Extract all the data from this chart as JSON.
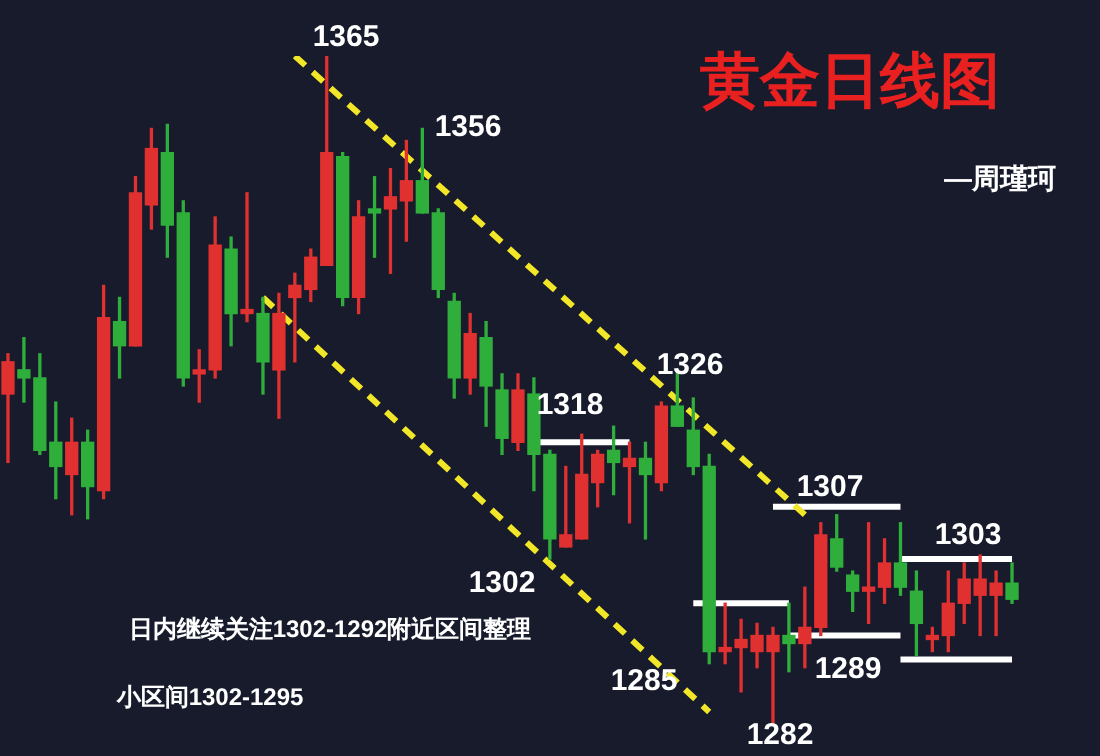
{
  "chart_data": {
    "type": "candlestick",
    "title": "黄金日线图",
    "subtitle": "—周瑾珂",
    "categories": [
      null,
      null,
      null,
      null,
      null,
      null,
      null,
      null,
      null,
      null,
      null,
      null,
      null,
      null,
      null,
      null,
      null,
      null,
      null,
      null,
      null,
      null,
      null,
      null,
      null,
      null,
      null,
      null,
      null,
      null,
      null,
      null,
      null,
      null,
      null,
      null,
      null,
      null,
      null,
      null,
      null,
      null,
      null,
      null,
      null,
      null,
      null,
      null,
      null,
      null,
      null,
      null,
      null,
      null,
      null,
      null,
      null,
      null,
      null,
      null,
      null,
      null,
      null,
      null
    ],
    "ohlc": [
      [
        1323,
        1328,
        1314.5,
        1327
      ],
      [
        1326,
        1330,
        1322,
        1325
      ],
      [
        1325,
        1328,
        1315.5,
        1316
      ],
      [
        1317,
        1322,
        1310,
        1314
      ],
      [
        1313,
        1320,
        1308,
        1317
      ],
      [
        1317,
        1318.5,
        1307.5,
        1311.5
      ],
      [
        1311,
        1336.5,
        1310,
        1332.5
      ],
      [
        1332,
        1335,
        1325,
        1329
      ],
      [
        1329,
        1350,
        1329,
        1348
      ],
      [
        1346.5,
        1356,
        1343.5,
        1353.5
      ],
      [
        1353,
        1356.5,
        1340,
        1344
      ],
      [
        1345.5,
        1347,
        1324,
        1325
      ],
      [
        1325.5,
        1328.5,
        1322,
        1326
      ],
      [
        1326,
        1345,
        1325,
        1341.5
      ],
      [
        1341,
        1342.5,
        1329,
        1333
      ],
      [
        1333,
        1348,
        1332,
        1333.5
      ],
      [
        1333,
        1335,
        1323,
        1327
      ],
      [
        1326,
        1335.5,
        1320,
        1333
      ],
      [
        1335,
        1338,
        1327,
        1336.5
      ],
      [
        1336,
        1341,
        1334.5,
        1340
      ],
      [
        1339,
        1365,
        1339,
        1353
      ],
      [
        1352.5,
        1353,
        1334,
        1335
      ],
      [
        1335,
        1347,
        1333,
        1345
      ],
      [
        1346,
        1350,
        1340,
        1345.5
      ],
      [
        1346,
        1351,
        1338,
        1347.5
      ],
      [
        1347,
        1354.5,
        1342,
        1349.5
      ],
      [
        1349.5,
        1356,
        1345.5,
        1345.5
      ],
      [
        1345.5,
        1346,
        1335,
        1336
      ],
      [
        1334.5,
        1335.5,
        1322.5,
        1325
      ],
      [
        1325,
        1333,
        1323,
        1330.5
      ],
      [
        1330,
        1332,
        1319,
        1324
      ],
      [
        1323.5,
        1325.5,
        1315.5,
        1317.5
      ],
      [
        1317,
        1325.5,
        1316,
        1323.5
      ],
      [
        1323,
        1325,
        1311,
        1315.5
      ],
      [
        1315.5,
        1316,
        1302.5,
        1305
      ],
      [
        1304,
        1314,
        1304,
        1305.5
      ],
      [
        1305,
        1318,
        1305,
        1313
      ],
      [
        1312,
        1316,
        1309,
        1315.5
      ],
      [
        1316,
        1319,
        1310.5,
        1314.5
      ],
      [
        1314,
        1317,
        1307,
        1315
      ],
      [
        1315,
        1317,
        1305,
        1313
      ],
      [
        1312,
        1322,
        1311,
        1321.5
      ],
      [
        1321.5,
        1326,
        1319,
        1319
      ],
      [
        1318.5,
        1322.5,
        1313,
        1314
      ],
      [
        1314,
        1315.5,
        1289.5,
        1291
      ],
      [
        1291,
        1297,
        1289.5,
        1291.5
      ],
      [
        1291.5,
        1295,
        1286,
        1292.5
      ],
      [
        1291,
        1294.5,
        1289,
        1293
      ],
      [
        1291,
        1294,
        1282,
        1293
      ],
      [
        1293,
        1297,
        1288.5,
        1292
      ],
      [
        1292,
        1299,
        1289,
        1294
      ],
      [
        1294,
        1307,
        1293,
        1305.5
      ],
      [
        1305,
        1308,
        1301,
        1301.5
      ],
      [
        1300.5,
        1301,
        1296,
        1298.5
      ],
      [
        1298.5,
        1307,
        1294.5,
        1299
      ],
      [
        1299,
        1305,
        1297,
        1302
      ],
      [
        1302,
        1307,
        1298,
        1299
      ],
      [
        1298.5,
        1301,
        1290.5,
        1294.5
      ],
      [
        1292.5,
        1294,
        1291,
        1293
      ],
      [
        1293,
        1301,
        1291,
        1297
      ],
      [
        1297,
        1302,
        1294.5,
        1300
      ],
      [
        1298,
        1303,
        1293,
        1300
      ],
      [
        1298,
        1301,
        1293,
        1299.5
      ],
      [
        1299.5,
        1302,
        1297,
        1297.5
      ]
    ],
    "colors": [
      "#e03030",
      "#2fae3c",
      "#2fae3c",
      "#2fae3c",
      "#e03030",
      "#2fae3c",
      "#e03030",
      "#2fae3c",
      "#e03030",
      "#e03030",
      "#2fae3c",
      "#2fae3c",
      "#e03030",
      "#e03030",
      "#2fae3c",
      "#e03030",
      "#2fae3c",
      "#e03030",
      "#e03030",
      "#e03030",
      "#e03030",
      "#2fae3c",
      "#e03030",
      "#2fae3c",
      "#e03030",
      "#e03030",
      "#2fae3c",
      "#2fae3c",
      "#2fae3c",
      "#e03030",
      "#2fae3c",
      "#2fae3c",
      "#e03030",
      "#2fae3c",
      "#2fae3c",
      "#e03030",
      "#e03030",
      "#e03030",
      "#2fae3c",
      "#e03030",
      "#2fae3c",
      "#e03030",
      "#2fae3c",
      "#2fae3c",
      "#2fae3c",
      "#e03030",
      "#e03030",
      "#e03030",
      "#e03030",
      "#2fae3c",
      "#e03030",
      "#e03030",
      "#2fae3c",
      "#2fae3c",
      "#e03030",
      "#e03030",
      "#2fae3c",
      "#2fae3c",
      "#e03030",
      "#e03030",
      "#e03030",
      "#e03030",
      "#e03030",
      "#2fae3c"
    ],
    "series": [
      {
        "type": "line",
        "color": "#f2e629",
        "line_style": "dashed",
        "values": [
          null,
          null,
          null,
          null,
          null,
          null,
          null,
          null,
          null,
          null,
          null,
          null,
          null,
          null,
          null,
          null,
          null,
          null,
          1365,
          null,
          null,
          null,
          null,
          null,
          null,
          null,
          null,
          null,
          null,
          null,
          null,
          null,
          null,
          null,
          null,
          null,
          null,
          null,
          null,
          null,
          null,
          null,
          null,
          null,
          null,
          null,
          null,
          null,
          null,
          null,
          1308,
          null,
          null,
          null,
          null,
          null,
          null,
          null,
          null,
          null,
          null,
          null,
          null,
          null
        ]
      },
      {
        "type": "line",
        "color": "#f2e629",
        "line_style": "dashed",
        "values": [
          null,
          null,
          null,
          null,
          null,
          null,
          null,
          null,
          null,
          null,
          null,
          null,
          null,
          null,
          null,
          null,
          1335,
          null,
          null,
          null,
          null,
          null,
          null,
          null,
          null,
          null,
          null,
          null,
          null,
          null,
          null,
          null,
          null,
          null,
          null,
          null,
          null,
          null,
          null,
          null,
          null,
          null,
          null,
          null,
          1283.5,
          null,
          null,
          null,
          null,
          null,
          null,
          null,
          null,
          null,
          null,
          null,
          null,
          null,
          null,
          null,
          null,
          null,
          null,
          null
        ]
      },
      {
        "type": "line",
        "color": "#ffffff",
        "line_style": "solid",
        "values": [
          null,
          null,
          null,
          null,
          null,
          null,
          null,
          null,
          null,
          null,
          null,
          null,
          null,
          null,
          null,
          null,
          null,
          null,
          null,
          null,
          null,
          null,
          null,
          null,
          null,
          null,
          null,
          null,
          null,
          null,
          null,
          null,
          null,
          1317,
          null,
          null,
          null,
          null,
          null,
          1317,
          null,
          null,
          null,
          null,
          null,
          null,
          null,
          null,
          null,
          null,
          null,
          null,
          null,
          null,
          null,
          null,
          null,
          null,
          null,
          null,
          null,
          null,
          null,
          null
        ]
      },
      {
        "type": "line",
        "color": "#ffffff",
        "line_style": "solid",
        "values": [
          null,
          null,
          null,
          null,
          null,
          null,
          null,
          null,
          null,
          null,
          null,
          null,
          null,
          null,
          null,
          null,
          null,
          null,
          null,
          null,
          null,
          null,
          null,
          null,
          null,
          null,
          null,
          null,
          null,
          null,
          null,
          null,
          null,
          null,
          null,
          null,
          null,
          null,
          null,
          null,
          null,
          null,
          null,
          1297,
          null,
          null,
          null,
          null,
          null,
          1297,
          null,
          null,
          null,
          null,
          null,
          null,
          null,
          null,
          null,
          null,
          null,
          null,
          null,
          null
        ]
      },
      {
        "type": "line",
        "color": "#ffffff",
        "line_style": "solid",
        "values": [
          null,
          null,
          null,
          null,
          null,
          null,
          null,
          null,
          null,
          null,
          null,
          null,
          null,
          null,
          null,
          null,
          null,
          null,
          null,
          null,
          null,
          null,
          null,
          null,
          null,
          null,
          null,
          null,
          null,
          null,
          null,
          null,
          null,
          null,
          null,
          null,
          null,
          null,
          null,
          null,
          null,
          null,
          null,
          null,
          null,
          null,
          null,
          null,
          1309,
          null,
          null,
          null,
          null,
          null,
          null,
          null,
          1309,
          null,
          null,
          null,
          null,
          null,
          null,
          null
        ]
      },
      {
        "type": "line",
        "color": "#ffffff",
        "line_style": "solid",
        "values": [
          null,
          null,
          null,
          null,
          null,
          null,
          null,
          null,
          null,
          null,
          null,
          null,
          null,
          null,
          null,
          null,
          null,
          null,
          null,
          null,
          null,
          null,
          null,
          null,
          null,
          null,
          null,
          null,
          null,
          null,
          null,
          null,
          null,
          null,
          null,
          null,
          null,
          null,
          null,
          null,
          null,
          null,
          null,
          null,
          null,
          null,
          null,
          null,
          null,
          1293,
          null,
          null,
          null,
          null,
          null,
          null,
          1293,
          null,
          null,
          null,
          null,
          null,
          null,
          null
        ]
      },
      {
        "type": "line",
        "color": "#ffffff",
        "line_style": "solid",
        "values": [
          null,
          null,
          null,
          null,
          null,
          null,
          null,
          null,
          null,
          null,
          null,
          null,
          null,
          null,
          null,
          null,
          null,
          null,
          null,
          null,
          null,
          null,
          null,
          null,
          null,
          null,
          null,
          null,
          null,
          null,
          null,
          null,
          null,
          null,
          null,
          null,
          null,
          null,
          null,
          null,
          null,
          null,
          null,
          null,
          null,
          null,
          null,
          null,
          null,
          null,
          null,
          null,
          null,
          null,
          null,
          null,
          1302.5,
          null,
          null,
          null,
          null,
          null,
          null,
          1302.5
        ]
      },
      {
        "type": "line",
        "color": "#ffffff",
        "line_style": "solid",
        "values": [
          null,
          null,
          null,
          null,
          null,
          null,
          null,
          null,
          null,
          null,
          null,
          null,
          null,
          null,
          null,
          null,
          null,
          null,
          null,
          null,
          null,
          null,
          null,
          null,
          null,
          null,
          null,
          null,
          null,
          null,
          null,
          null,
          null,
          null,
          null,
          null,
          null,
          null,
          null,
          null,
          null,
          null,
          null,
          null,
          null,
          null,
          null,
          null,
          null,
          null,
          null,
          null,
          null,
          null,
          null,
          null,
          1290,
          null,
          null,
          null,
          null,
          null,
          null,
          1290
        ]
      }
    ],
    "annotations": [
      "1365",
      "1356",
      "1326",
      "1318",
      "1302",
      "1285",
      "1282",
      "1307",
      "1289",
      "1303",
      "日内继续关注1302-1292附近区间整理",
      "小区间1302-1295"
    ],
    "legend": false
  }
}
